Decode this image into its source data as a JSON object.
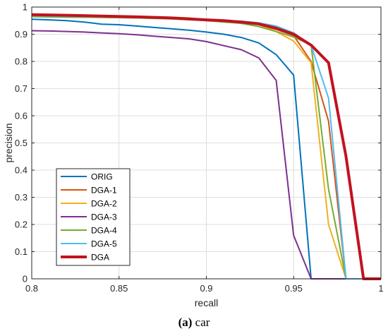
{
  "caption": {
    "label": "(a)",
    "text": " car"
  },
  "chart_data": {
    "type": "line",
    "xlabel": "recall",
    "ylabel": "precision",
    "xlim": [
      0.8,
      1
    ],
    "ylim": [
      0,
      1
    ],
    "xticks": [
      "0.8",
      "0.85",
      "0.9",
      "0.95",
      "1"
    ],
    "xtick_values": [
      0.8,
      0.85,
      0.9,
      0.95,
      1
    ],
    "yticks": [
      "0",
      "0.1",
      "0.2",
      "0.3",
      "0.4",
      "0.5",
      "0.6",
      "0.7",
      "0.8",
      "0.9",
      "1"
    ],
    "ytick_values": [
      0,
      0.1,
      0.2,
      0.3,
      0.4,
      0.5,
      0.6,
      0.7,
      0.8,
      0.9,
      1
    ],
    "grid": true,
    "legend_position": "bottom-left",
    "series": [
      {
        "name": "ORIG",
        "color": "#0072BD",
        "width": 2,
        "x": [
          0.8,
          0.81,
          0.82,
          0.83,
          0.84,
          0.85,
          0.86,
          0.87,
          0.88,
          0.89,
          0.9,
          0.91,
          0.92,
          0.93,
          0.94,
          0.95,
          0.96,
          0.97,
          0.98,
          0.99,
          1.0
        ],
        "y": [
          0.955,
          0.953,
          0.95,
          0.945,
          0.937,
          0.935,
          0.93,
          0.925,
          0.92,
          0.915,
          0.908,
          0.9,
          0.888,
          0.868,
          0.825,
          0.75,
          0,
          0,
          0,
          0,
          0
        ]
      },
      {
        "name": "DGA-1",
        "color": "#D95319",
        "width": 2,
        "x": [
          0.8,
          0.82,
          0.84,
          0.86,
          0.88,
          0.9,
          0.91,
          0.92,
          0.93,
          0.94,
          0.95,
          0.96,
          0.97,
          0.98,
          0.99,
          1.0
        ],
        "y": [
          0.965,
          0.963,
          0.962,
          0.96,
          0.958,
          0.953,
          0.95,
          0.945,
          0.935,
          0.918,
          0.895,
          0.8,
          0.58,
          0,
          0,
          0
        ]
      },
      {
        "name": "DGA-2",
        "color": "#EDB120",
        "width": 2,
        "x": [
          0.8,
          0.82,
          0.84,
          0.86,
          0.88,
          0.89,
          0.9,
          0.91,
          0.92,
          0.93,
          0.94,
          0.95,
          0.96,
          0.97,
          0.98,
          0.99,
          1.0
        ],
        "y": [
          0.97,
          0.968,
          0.966,
          0.965,
          0.962,
          0.96,
          0.952,
          0.948,
          0.945,
          0.935,
          0.91,
          0.875,
          0.795,
          0.2,
          0,
          0,
          0
        ]
      },
      {
        "name": "DGA-3",
        "color": "#7E2F8E",
        "width": 2,
        "x": [
          0.8,
          0.81,
          0.82,
          0.83,
          0.84,
          0.85,
          0.86,
          0.87,
          0.88,
          0.89,
          0.9,
          0.91,
          0.92,
          0.93,
          0.94,
          0.95,
          0.96,
          0.97,
          0.98,
          0.99,
          1.0
        ],
        "y": [
          0.913,
          0.912,
          0.91,
          0.908,
          0.905,
          0.902,
          0.898,
          0.893,
          0.888,
          0.883,
          0.873,
          0.858,
          0.843,
          0.813,
          0.73,
          0.16,
          0,
          0,
          0,
          0,
          0
        ]
      },
      {
        "name": "DGA-4",
        "color": "#77AC30",
        "width": 2,
        "x": [
          0.8,
          0.82,
          0.84,
          0.86,
          0.88,
          0.9,
          0.91,
          0.92,
          0.93,
          0.94,
          0.95,
          0.96,
          0.97,
          0.98,
          0.99,
          1.0
        ],
        "y": [
          0.965,
          0.963,
          0.962,
          0.96,
          0.956,
          0.95,
          0.945,
          0.94,
          0.928,
          0.91,
          0.89,
          0.86,
          0.33,
          0,
          0,
          0
        ]
      },
      {
        "name": "DGA-5",
        "color": "#4DBEEE",
        "width": 2,
        "x": [
          0.8,
          0.82,
          0.84,
          0.86,
          0.88,
          0.9,
          0.91,
          0.92,
          0.93,
          0.94,
          0.95,
          0.96,
          0.97,
          0.98,
          0.99,
          1.0
        ],
        "y": [
          0.968,
          0.966,
          0.964,
          0.962,
          0.958,
          0.952,
          0.95,
          0.948,
          0.942,
          0.93,
          0.905,
          0.86,
          0.665,
          0,
          0,
          0
        ]
      },
      {
        "name": "DGA",
        "color": "#C1121F",
        "width": 4,
        "x": [
          0.8,
          0.82,
          0.84,
          0.86,
          0.88,
          0.9,
          0.91,
          0.92,
          0.93,
          0.94,
          0.95,
          0.96,
          0.97,
          0.98,
          0.99,
          1.0
        ],
        "y": [
          0.972,
          0.97,
          0.967,
          0.964,
          0.96,
          0.953,
          0.95,
          0.945,
          0.938,
          0.922,
          0.9,
          0.86,
          0.795,
          0.45,
          0,
          0
        ]
      }
    ]
  }
}
